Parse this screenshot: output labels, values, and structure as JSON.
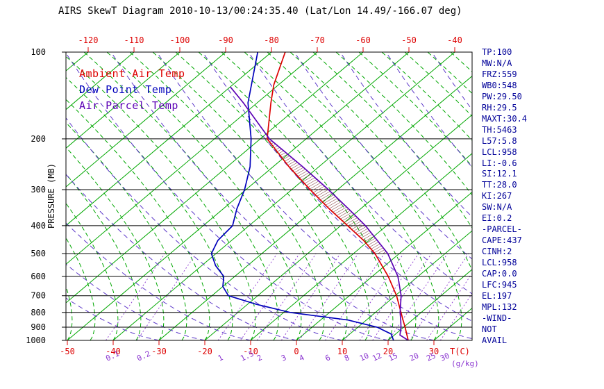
{
  "title": "AIRS SkewT Diagram 2010-10-13/00:24:35.40 (Lat/Lon 14.49/-166.07 deg)",
  "colors": {
    "ambient": "#dd0000",
    "dewpoint": "#0000bb",
    "parcel": "#5b00b5",
    "isotherm_green": "#00a700",
    "adiabat_purple": "#5a35c8",
    "mixing_purple": "#8a35d0",
    "axis_red": "#dd0000",
    "stats_navy": "#000099",
    "hatch": "#7a3333",
    "black": "#000000"
  },
  "legend": {
    "items": [
      {
        "label": "Ambient Air Temp",
        "color": "#dd0000"
      },
      {
        "label": "Dew Point Temp",
        "color": "#0000bb"
      },
      {
        "label": "Air Parcel Temp",
        "color": "#5b00b5"
      }
    ]
  },
  "stats_panel": {
    "lines": [
      "TP:100",
      "MW:N/A",
      "FRZ:559",
      "WB0:548",
      "PW:29.50",
      "RH:29.5",
      "MAXT:30.4",
      "TH:5463",
      "L57:5.8",
      "LCL:958",
      "LI:-0.6",
      "SI:12.1",
      "TT:28.0",
      "KI:267",
      "SW:N/A",
      "EI:0.2",
      "-PARCEL-",
      "CAPE:437",
      "CINH:2",
      "LCL:958",
      "CAP:0.0",
      "LFC:945",
      "EL:197",
      "MPL:132",
      "-WIND-",
      "NOT",
      "AVAIL"
    ]
  },
  "chart_data": {
    "type": "line",
    "diagram": "skew-t-log-p",
    "pressure_axis": {
      "label": "PRESSURE (MB)",
      "scale": "log",
      "range_mb": [
        100,
        1000
      ],
      "ticks": [
        100,
        200,
        300,
        400,
        500,
        600,
        700,
        800,
        900,
        1000
      ]
    },
    "temp_axis": {
      "unit_label": "T(C)",
      "top_ticks_c": [
        -120,
        -110,
        -100,
        -90,
        -80,
        -70,
        -60,
        -50,
        -40
      ],
      "bottom_ticks_c": [
        -50,
        -40,
        -30,
        -20,
        -10,
        0,
        10,
        20,
        30
      ],
      "top_pressure_mb": 100,
      "bottom_pressure_mb": 1000
    },
    "mixing_ratio_axis": {
      "unit_label": "(g/kg)",
      "ticks": [
        "0.1",
        "0.2",
        "1",
        "1.5",
        "2",
        "3",
        "4",
        "6",
        "8",
        "10",
        "12",
        "15",
        "20",
        "25",
        "30"
      ]
    },
    "series": [
      {
        "id": "ambient-air-temp",
        "name": "Ambient Air Temp",
        "color": "#dd0000",
        "points_p_mb_t_c": [
          [
            1000,
            24.4
          ],
          [
            950,
            22.4
          ],
          [
            900,
            20.3
          ],
          [
            850,
            18.0
          ],
          [
            800,
            15.6
          ],
          [
            700,
            10.3
          ],
          [
            600,
            3.5
          ],
          [
            500,
            -5.3
          ],
          [
            450,
            -11.2
          ],
          [
            400,
            -18.5
          ],
          [
            350,
            -26.8
          ],
          [
            300,
            -36.0
          ],
          [
            250,
            -46.5
          ],
          [
            200,
            -58.5
          ],
          [
            150,
            -67.0
          ],
          [
            130,
            -71.0
          ],
          [
            100,
            -77.0
          ]
        ]
      },
      {
        "id": "dew-point-temp",
        "name": "Dew Point Temp",
        "color": "#0000bb",
        "points_p_mb_t_c": [
          [
            1000,
            21.2
          ],
          [
            950,
            19.0
          ],
          [
            900,
            14.2
          ],
          [
            850,
            6.0
          ],
          [
            800,
            -8.6
          ],
          [
            750,
            -18.0
          ],
          [
            700,
            -26.4
          ],
          [
            650,
            -30.0
          ],
          [
            600,
            -32.4
          ],
          [
            550,
            -37.0
          ],
          [
            500,
            -41.0
          ],
          [
            450,
            -43.0
          ],
          [
            400,
            -43.6
          ],
          [
            350,
            -47.0
          ],
          [
            300,
            -50.3
          ],
          [
            250,
            -55.0
          ],
          [
            200,
            -62.0
          ],
          [
            150,
            -72.0
          ],
          [
            100,
            -83.0
          ]
        ]
      },
      {
        "id": "air-parcel-temp",
        "name": "Air Parcel Temp",
        "color": "#5b00b5",
        "points_p_mb_t_c": [
          [
            1000,
            24.4
          ],
          [
            958,
            21.2
          ],
          [
            900,
            19.4
          ],
          [
            850,
            17.5
          ],
          [
            800,
            15.4
          ],
          [
            700,
            11.3
          ],
          [
            600,
            5.6
          ],
          [
            500,
            -2.5
          ],
          [
            450,
            -8.2
          ],
          [
            400,
            -14.6
          ],
          [
            350,
            -22.6
          ],
          [
            300,
            -32.0
          ],
          [
            250,
            -43.5
          ],
          [
            200,
            -58.0
          ],
          [
            150,
            -73.0
          ],
          [
            132,
            -80.0
          ]
        ]
      }
    ],
    "cape_hatch": {
      "between_series": [
        "ambient-air-temp",
        "air-parcel-temp"
      ],
      "pressure_range_mb": [
        200,
        520
      ]
    },
    "background": {
      "isotherm_step_c": 10,
      "isotherm_color": "#00a700",
      "moist_adiabat_color": "#00a700",
      "dry_adiabat_color": "#5a35c8",
      "mixing_ratio_color": "#8a35d0",
      "grid": true,
      "legend_position": "upper-left"
    }
  }
}
